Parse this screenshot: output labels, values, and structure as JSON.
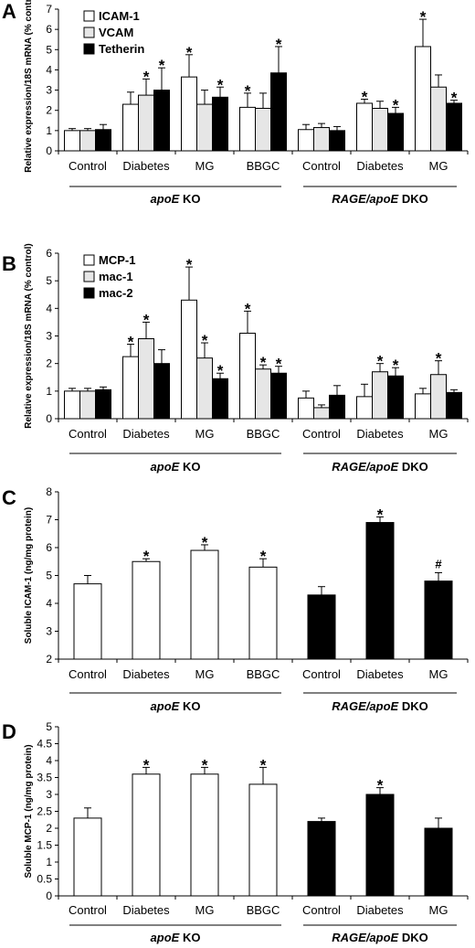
{
  "colors": {
    "white_bar": "#ffffff",
    "gray_bar": "#e6e6e6",
    "black_bar": "#000000",
    "axis": "#000000"
  },
  "chart_data": [
    {
      "panel": "A",
      "type": "bar",
      "ylabel": "Relative expression/18S mRNA (% control)",
      "ylim": [
        0,
        7
      ],
      "yticks": [
        0,
        1,
        2,
        3,
        4,
        5,
        6,
        7
      ],
      "categories": [
        "Control",
        "Diabetes",
        "MG",
        "BBGC",
        "Control",
        "Diabetes",
        "MG"
      ],
      "groups": [
        {
          "label_italic": "apoE",
          "label_rest": " KO",
          "categories": [
            0,
            1,
            2,
            3
          ]
        },
        {
          "label_italic": "RAGE/apoE",
          "label_rest": " DKO",
          "categories": [
            4,
            5,
            6
          ]
        }
      ],
      "legend": "top-left",
      "series": [
        {
          "name": "ICAM-1",
          "color": "white",
          "values": [
            1.0,
            2.3,
            3.65,
            2.15,
            1.05,
            2.35,
            5.15
          ],
          "errors": [
            0.1,
            0.6,
            1.1,
            0.7,
            0.25,
            0.2,
            1.35
          ],
          "sig": [
            "",
            "",
            "*",
            "*",
            "",
            "*",
            "*"
          ]
        },
        {
          "name": "VCAM",
          "color": "gray",
          "values": [
            1.0,
            2.75,
            2.3,
            2.1,
            1.15,
            2.1,
            3.15
          ],
          "errors": [
            0.1,
            0.8,
            0.7,
            0.75,
            0.2,
            0.35,
            0.6
          ],
          "sig": [
            "",
            "*",
            "",
            "",
            "",
            "",
            ""
          ]
        },
        {
          "name": "Tetherin",
          "color": "black",
          "values": [
            1.05,
            3.0,
            2.65,
            3.85,
            1.0,
            1.85,
            2.35
          ],
          "errors": [
            0.25,
            1.1,
            0.5,
            1.3,
            0.2,
            0.3,
            0.15
          ],
          "sig": [
            "",
            "*",
            "*",
            "*",
            "",
            "*",
            "*"
          ]
        }
      ]
    },
    {
      "panel": "B",
      "type": "bar",
      "ylabel": "Relative expression/18S mRNA (% control)",
      "ylim": [
        0,
        6
      ],
      "yticks": [
        0,
        1,
        2,
        3,
        4,
        5,
        6
      ],
      "categories": [
        "Control",
        "Diabetes",
        "MG",
        "BBGC",
        "Control",
        "Diabetes",
        "MG"
      ],
      "groups": [
        {
          "label_italic": "apoE",
          "label_rest": " KO",
          "categories": [
            0,
            1,
            2,
            3
          ]
        },
        {
          "label_italic": "RAGE/apoE",
          "label_rest": " DKO",
          "categories": [
            4,
            5,
            6
          ]
        }
      ],
      "legend": "top-left",
      "series": [
        {
          "name": "MCP-1",
          "color": "white",
          "values": [
            1.0,
            2.25,
            4.3,
            3.1,
            0.75,
            0.8,
            0.9
          ],
          "errors": [
            0.1,
            0.45,
            1.2,
            0.8,
            0.25,
            0.45,
            0.2
          ],
          "sig": [
            "",
            "*",
            "*",
            "*",
            "",
            "",
            ""
          ]
        },
        {
          "name": "mac-1",
          "color": "gray",
          "values": [
            1.0,
            2.9,
            2.2,
            1.8,
            0.4,
            1.7,
            1.6
          ],
          "errors": [
            0.1,
            0.6,
            0.55,
            0.15,
            0.1,
            0.3,
            0.5
          ],
          "sig": [
            "",
            "*",
            "*",
            "*",
            "",
            "*",
            "*"
          ]
        },
        {
          "name": "mac-2",
          "color": "black",
          "values": [
            1.05,
            2.0,
            1.45,
            1.65,
            0.85,
            1.55,
            0.95
          ],
          "errors": [
            0.1,
            0.5,
            0.2,
            0.25,
            0.35,
            0.3,
            0.1
          ],
          "sig": [
            "",
            "",
            "*",
            "*",
            "",
            "*",
            ""
          ]
        }
      ]
    },
    {
      "panel": "C",
      "type": "bar",
      "ylabel": "Soluble ICAM-1 (ng/mg protein)",
      "ylim": [
        2,
        8
      ],
      "yticks": [
        2,
        3,
        4,
        5,
        6,
        7,
        8
      ],
      "categories": [
        "Control",
        "Diabetes",
        "MG",
        "BBGC",
        "Control",
        "Diabetes",
        "MG"
      ],
      "groups": [
        {
          "label_italic": "apoE",
          "label_rest": " KO",
          "categories": [
            0,
            1,
            2,
            3
          ]
        },
        {
          "label_italic": "RAGE/apoE",
          "label_rest": " DKO",
          "categories": [
            4,
            5,
            6
          ]
        }
      ],
      "series": [
        {
          "name": "",
          "colors": [
            "white",
            "white",
            "white",
            "white",
            "black",
            "black",
            "black"
          ],
          "values": [
            4.7,
            5.5,
            5.9,
            5.3,
            4.3,
            6.9,
            4.8
          ],
          "errors": [
            0.3,
            0.1,
            0.2,
            0.3,
            0.3,
            0.2,
            0.3
          ],
          "sig": [
            "",
            "*",
            "*",
            "*",
            "",
            "*",
            "#"
          ]
        }
      ]
    },
    {
      "panel": "D",
      "type": "bar",
      "ylabel": "Soluble MCP-1 (ng/mg protein)",
      "ylim": [
        0,
        5
      ],
      "yticks": [
        0,
        0.5,
        1,
        1.5,
        2,
        2.5,
        3,
        3.5,
        4,
        4.5,
        5
      ],
      "categories": [
        "Control",
        "Diabetes",
        "MG",
        "BBGC",
        "Control",
        "Diabetes",
        "MG"
      ],
      "groups": [
        {
          "label_italic": "apoE",
          "label_rest": " KO",
          "categories": [
            0,
            1,
            2,
            3
          ]
        },
        {
          "label_italic": "RAGE/apoE",
          "label_rest": " DKO",
          "categories": [
            4,
            5,
            6
          ]
        }
      ],
      "series": [
        {
          "name": "",
          "colors": [
            "white",
            "white",
            "white",
            "white",
            "black",
            "black",
            "black"
          ],
          "values": [
            2.3,
            3.6,
            3.6,
            3.3,
            2.2,
            3.0,
            2.0
          ],
          "errors": [
            0.3,
            0.2,
            0.2,
            0.5,
            0.1,
            0.2,
            0.3
          ],
          "sig": [
            "",
            "*",
            "*",
            "*",
            "",
            "*",
            ""
          ]
        }
      ]
    }
  ]
}
